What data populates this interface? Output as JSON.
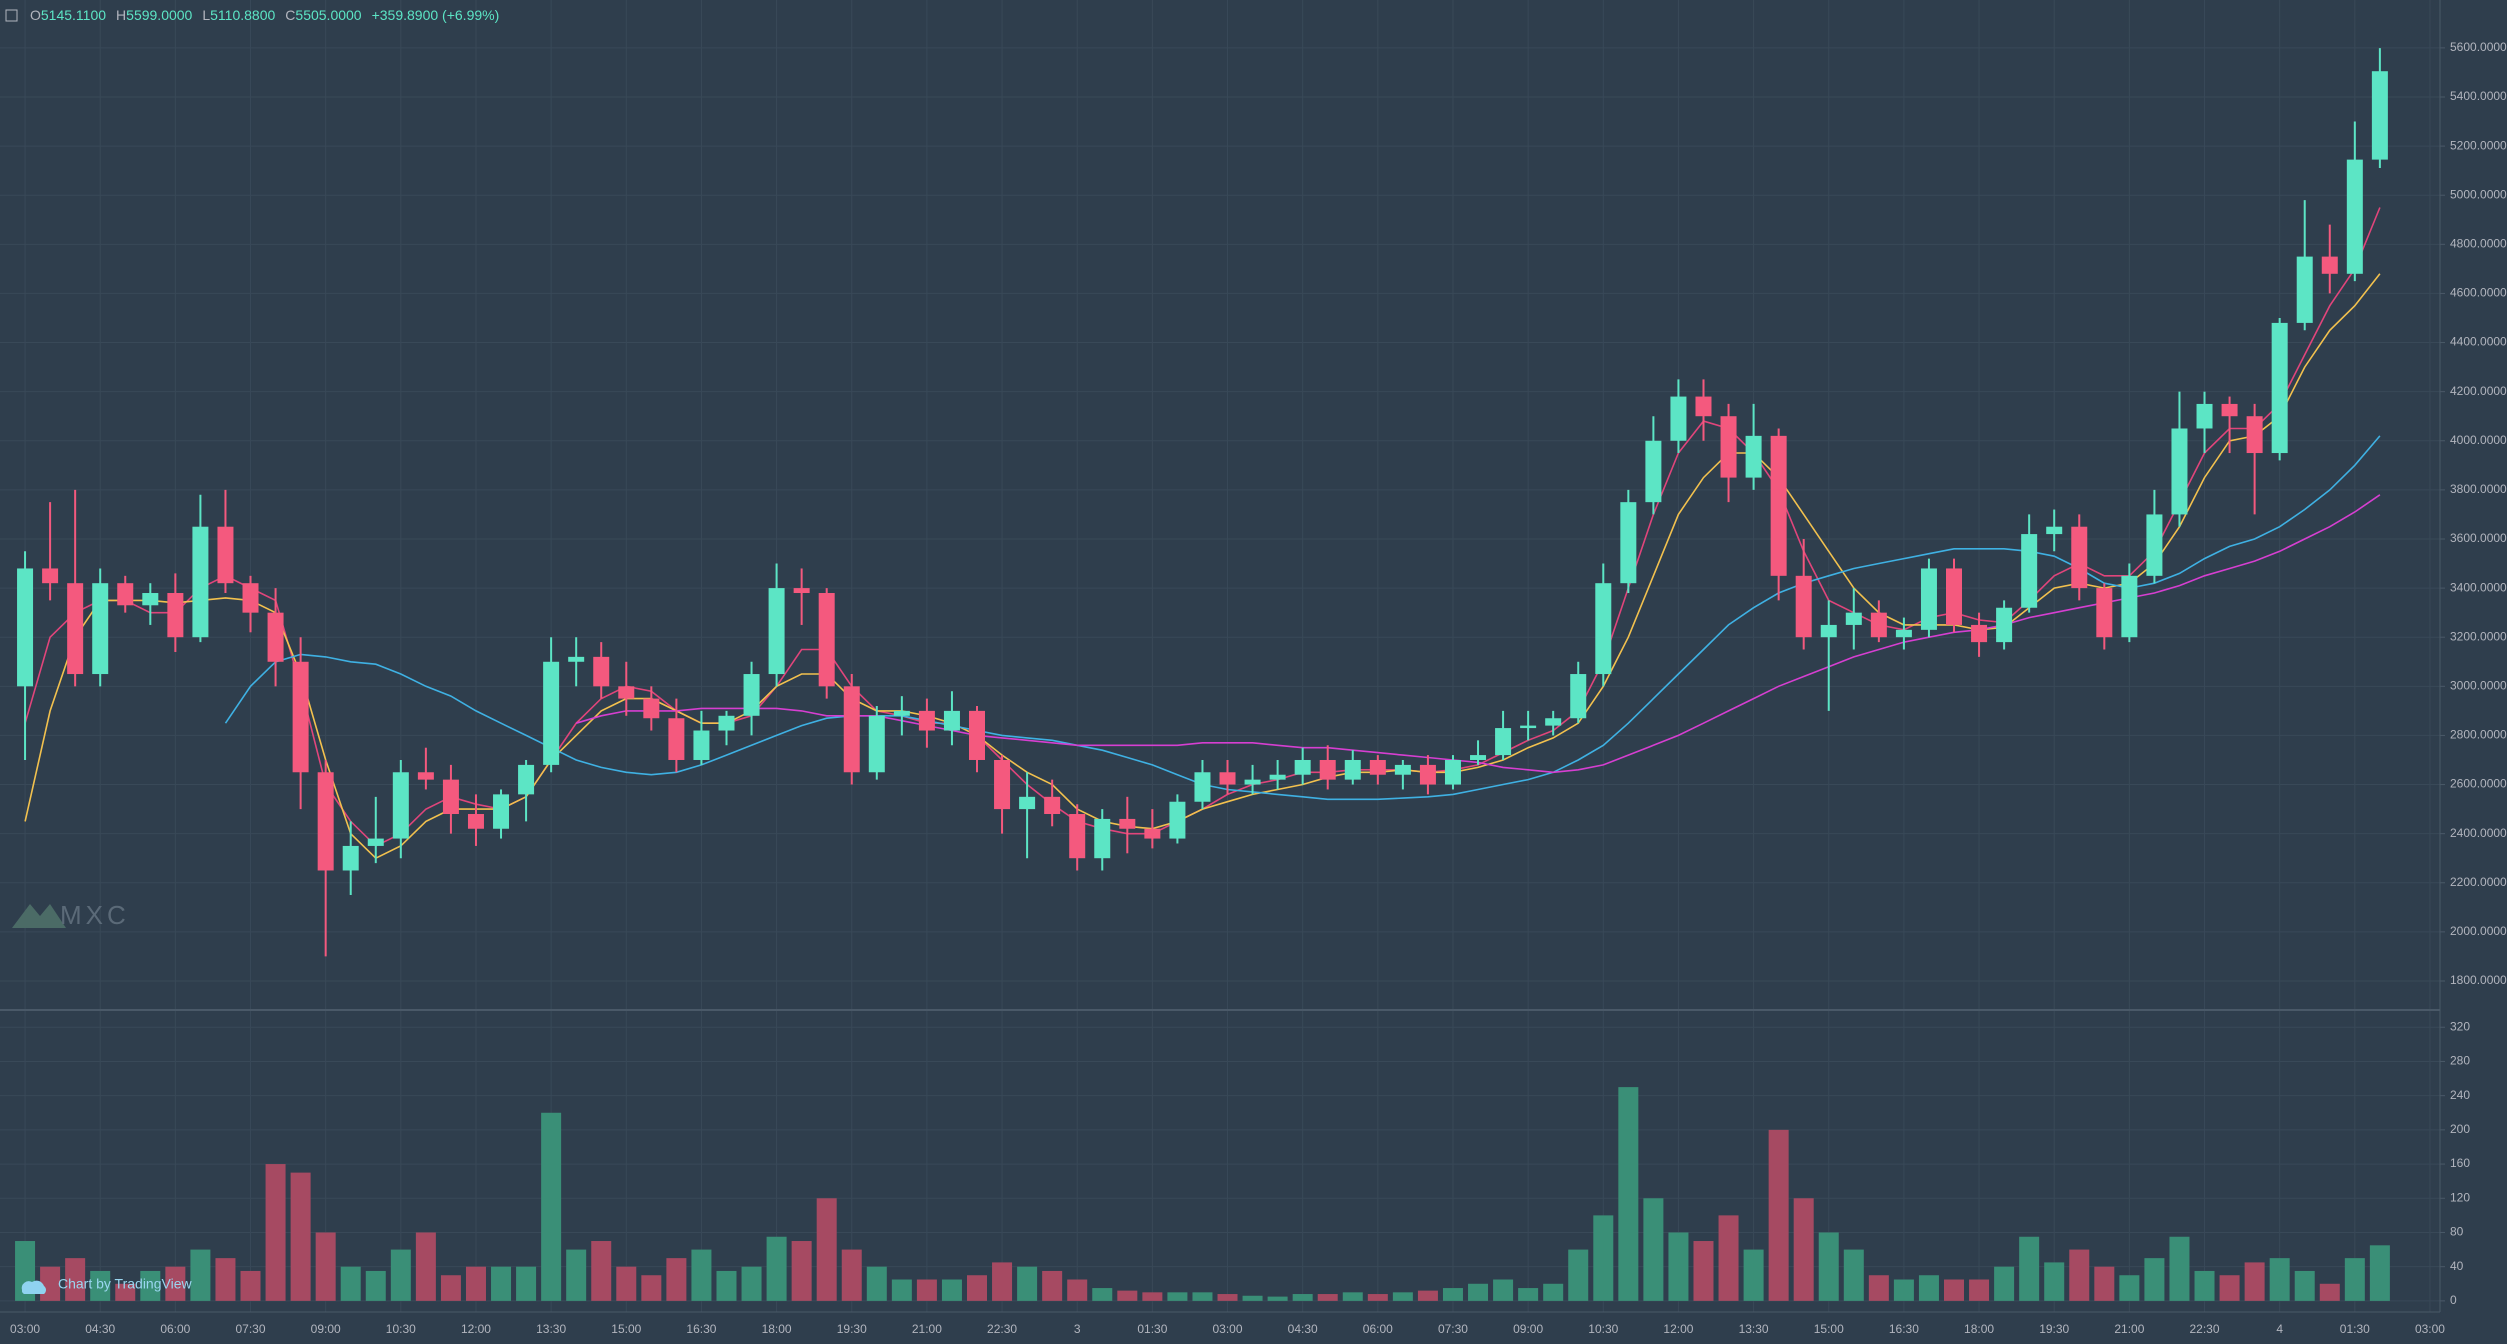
{
  "watermark": "MXC",
  "attribution": "Chart by TradingView",
  "chart_data": [
    {
      "type": "candlestick",
      "legend": [
        {
          "label": "O",
          "value": "5145.1100"
        },
        {
          "label": "H",
          "value": "5599.0000"
        },
        {
          "label": "L",
          "value": "5110.8800"
        },
        {
          "label": "C",
          "value": "5505.0000"
        }
      ],
      "change": "+359.8900 (+6.99%)",
      "up_color": "#5ce5c5",
      "down_color": "#f4597e",
      "grid": true,
      "xlim": [
        -1,
        96.4
      ],
      "xticks": [
        {
          "value": 0,
          "label": "03:00"
        },
        {
          "value": 3,
          "label": "04:30"
        },
        {
          "value": 6,
          "label": "06:00"
        },
        {
          "value": 9,
          "label": "07:30"
        },
        {
          "value": 12,
          "label": "09:00"
        },
        {
          "value": 15,
          "label": "10:30"
        },
        {
          "value": 18,
          "label": "12:00"
        },
        {
          "value": 21,
          "label": "13:30"
        },
        {
          "value": 24,
          "label": "15:00"
        },
        {
          "value": 27,
          "label": "16:30"
        },
        {
          "value": 30,
          "label": "18:00"
        },
        {
          "value": 33,
          "label": "19:30"
        },
        {
          "value": 36,
          "label": "21:00"
        },
        {
          "value": 39,
          "label": "22:30"
        },
        {
          "value": 42,
          "label": "3"
        },
        {
          "value": 45,
          "label": "01:30"
        },
        {
          "value": 48,
          "label": "03:00"
        },
        {
          "value": 51,
          "label": "04:30"
        },
        {
          "value": 54,
          "label": "06:00"
        },
        {
          "value": 57,
          "label": "07:30"
        },
        {
          "value": 60,
          "label": "09:00"
        },
        {
          "value": 63,
          "label": "10:30"
        },
        {
          "value": 66,
          "label": "12:00"
        },
        {
          "value": 69,
          "label": "13:30"
        },
        {
          "value": 72,
          "label": "15:00"
        },
        {
          "value": 75,
          "label": "16:30"
        },
        {
          "value": 78,
          "label": "18:00"
        },
        {
          "value": 81,
          "label": "19:30"
        },
        {
          "value": 84,
          "label": "21:00"
        },
        {
          "value": 87,
          "label": "22:30"
        },
        {
          "value": 90,
          "label": "4"
        },
        {
          "value": 93,
          "label": "01:30"
        },
        {
          "value": 96,
          "label": "03:00"
        }
      ],
      "ylim": [
        1690,
        5795
      ],
      "yticks": [
        {
          "value": 1800,
          "label": "1800.0000"
        },
        {
          "value": 2000,
          "label": "2000.0000"
        },
        {
          "value": 2200,
          "label": "2200.0000"
        },
        {
          "value": 2400,
          "label": "2400.0000"
        },
        {
          "value": 2600,
          "label": "2600.0000"
        },
        {
          "value": 2800,
          "label": "2800.0000"
        },
        {
          "value": 3000,
          "label": "3000.0000"
        },
        {
          "value": 3200,
          "label": "3200.0000"
        },
        {
          "value": 3400,
          "label": "3400.0000"
        },
        {
          "value": 3600,
          "label": "3600.0000"
        },
        {
          "value": 3800,
          "label": "3800.0000"
        },
        {
          "value": 4000,
          "label": "4000.0000"
        },
        {
          "value": 4200,
          "label": "4200.0000"
        },
        {
          "value": 4400,
          "label": "4400.0000"
        },
        {
          "value": 4600,
          "label": "4600.0000"
        },
        {
          "value": 4800,
          "label": "4800.0000"
        },
        {
          "value": 5000,
          "label": "5000.0000"
        },
        {
          "value": 5200,
          "label": "5200.0000"
        },
        {
          "value": 5400,
          "label": "5400.0000"
        },
        {
          "value": 5600,
          "label": "5600.0000"
        }
      ],
      "open": [
        3000,
        3480,
        3420,
        3050,
        3420,
        3330,
        3380,
        3200,
        3650,
        3420,
        3300,
        3100,
        2650,
        2250,
        2350,
        2380,
        2650,
        2620,
        2480,
        2420,
        2560,
        2680,
        3100,
        3120,
        3000,
        2950,
        2870,
        2700,
        2820,
        2880,
        3050,
        3400,
        3380,
        3000,
        2650,
        2880,
        2900,
        2820,
        2900,
        2700,
        2500,
        2550,
        2480,
        2300,
        2460,
        2420,
        2380,
        2530,
        2650,
        2600,
        2620,
        2640,
        2700,
        2620,
        2700,
        2640,
        2680,
        2600,
        2700,
        2720,
        2830,
        2840,
        2870,
        3050,
        3420,
        3750,
        4000,
        4180,
        4100,
        3850,
        4020,
        3450,
        3200,
        3250,
        3300,
        3200,
        3230,
        3480,
        3250,
        3180,
        3320,
        3620,
        3650,
        3400,
        3200,
        3450,
        3700,
        4050,
        4150,
        4100,
        3950,
        4480,
        4750,
        4680,
        5145
      ],
      "high": [
        3550,
        3750,
        3800,
        3480,
        3450,
        3420,
        3460,
        3780,
        3800,
        3450,
        3400,
        3200,
        2700,
        2450,
        2550,
        2700,
        2750,
        2680,
        2560,
        2580,
        2700,
        3200,
        3200,
        3180,
        3100,
        3000,
        2950,
        2900,
        2900,
        3100,
        3500,
        3480,
        3400,
        3050,
        2920,
        2960,
        2950,
        2980,
        2920,
        2720,
        2650,
        2620,
        2520,
        2500,
        2550,
        2500,
        2560,
        2700,
        2700,
        2680,
        2700,
        2750,
        2760,
        2740,
        2720,
        2700,
        2720,
        2720,
        2780,
        2900,
        2900,
        2900,
        3100,
        3500,
        3800,
        4100,
        4250,
        4250,
        4150,
        4150,
        4050,
        3600,
        3350,
        3400,
        3350,
        3280,
        3520,
        3520,
        3300,
        3350,
        3700,
        3720,
        3700,
        3420,
        3500,
        3800,
        4200,
        4200,
        4180,
        4150,
        4500,
        4980,
        4880,
        5300,
        5599
      ],
      "low": [
        2700,
        3350,
        3000,
        3000,
        3300,
        3250,
        3140,
        3180,
        3380,
        3220,
        3000,
        2500,
        1900,
        2150,
        2280,
        2300,
        2580,
        2400,
        2350,
        2380,
        2450,
        2650,
        3000,
        2950,
        2880,
        2820,
        2650,
        2680,
        2760,
        2800,
        3000,
        3250,
        2950,
        2600,
        2620,
        2800,
        2750,
        2760,
        2650,
        2400,
        2300,
        2430,
        2250,
        2250,
        2320,
        2340,
        2360,
        2500,
        2560,
        2560,
        2580,
        2600,
        2580,
        2600,
        2600,
        2580,
        2560,
        2580,
        2680,
        2700,
        2780,
        2800,
        2850,
        3000,
        3380,
        3700,
        3950,
        4000,
        3750,
        3800,
        3350,
        3150,
        2900,
        3150,
        3180,
        3150,
        3200,
        3220,
        3120,
        3150,
        3300,
        3550,
        3350,
        3150,
        3180,
        3420,
        3650,
        3950,
        3950,
        3700,
        3920,
        4450,
        4600,
        4650,
        5110.88
      ],
      "close": [
        3480,
        3420,
        3050,
        3420,
        3330,
        3380,
        3200,
        3650,
        3420,
        3300,
        3100,
        2650,
        2250,
        2350,
        2380,
        2650,
        2620,
        2480,
        2420,
        2560,
        2680,
        3100,
        3120,
        3000,
        2950,
        2870,
        2700,
        2820,
        2880,
        3050,
        3400,
        3380,
        3000,
        2650,
        2880,
        2900,
        2820,
        2900,
        2700,
        2500,
        2550,
        2480,
        2300,
        2460,
        2420,
        2380,
        2530,
        2650,
        2600,
        2620,
        2640,
        2700,
        2620,
        2700,
        2640,
        2680,
        2600,
        2700,
        2720,
        2830,
        2840,
        2870,
        3050,
        3420,
        3750,
        4000,
        4180,
        4100,
        3850,
        4020,
        3450,
        3200,
        3250,
        3300,
        3200,
        3230,
        3480,
        3250,
        3180,
        3320,
        3620,
        3650,
        3400,
        3200,
        3450,
        3700,
        4050,
        4150,
        4100,
        3950,
        4480,
        4750,
        4680,
        5145,
        5505
      ],
      "lines": [
        {
          "color": "#e0457b",
          "values": [
            2850,
            3200,
            3300,
            3350,
            3350,
            3300,
            3300,
            3400,
            3450,
            3400,
            3350,
            3000,
            2600,
            2450,
            2350,
            2400,
            2500,
            2550,
            2520,
            2500,
            2550,
            2700,
            2850,
            2950,
            3000,
            2980,
            2900,
            2850,
            2850,
            2880,
            3000,
            3150,
            3150,
            3000,
            2900,
            2880,
            2850,
            2850,
            2800,
            2700,
            2600,
            2520,
            2450,
            2420,
            2400,
            2400,
            2450,
            2500,
            2560,
            2600,
            2620,
            2650,
            2650,
            2660,
            2660,
            2660,
            2650,
            2660,
            2680,
            2730,
            2780,
            2820,
            2900,
            3100,
            3400,
            3700,
            3950,
            4080,
            4050,
            3950,
            3800,
            3550,
            3350,
            3300,
            3250,
            3230,
            3280,
            3300,
            3270,
            3260,
            3350,
            3450,
            3500,
            3450,
            3450,
            3550,
            3750,
            3950,
            4050,
            4050,
            4150,
            4350,
            4550,
            4700,
            4950
          ]
        },
        {
          "color": "#f2c14e",
          "values": [
            2450,
            2900,
            3200,
            3350,
            3350,
            3350,
            3340,
            3350,
            3360,
            3350,
            3300,
            3050,
            2700,
            2400,
            2300,
            2350,
            2450,
            2500,
            2500,
            2500,
            2550,
            2700,
            2800,
            2900,
            2950,
            2950,
            2900,
            2850,
            2850,
            2900,
            3000,
            3050,
            3050,
            2950,
            2900,
            2900,
            2880,
            2850,
            2800,
            2720,
            2650,
            2600,
            2500,
            2450,
            2430,
            2420,
            2450,
            2500,
            2530,
            2560,
            2580,
            2600,
            2630,
            2650,
            2650,
            2660,
            2650,
            2650,
            2670,
            2700,
            2750,
            2790,
            2850,
            3000,
            3200,
            3450,
            3700,
            3850,
            3950,
            3950,
            3850,
            3700,
            3550,
            3400,
            3300,
            3250,
            3250,
            3250,
            3230,
            3240,
            3320,
            3400,
            3420,
            3400,
            3420,
            3500,
            3650,
            3850,
            4000,
            4020,
            4100,
            4300,
            4450,
            4550,
            4680
          ]
        },
        {
          "color": "#3fb1e3",
          "values": [
            null,
            null,
            null,
            null,
            null,
            null,
            null,
            null,
            2850,
            3000,
            3100,
            3130,
            3120,
            3100,
            3090,
            3050,
            3000,
            2960,
            2900,
            2850,
            2800,
            2750,
            2700,
            2670,
            2650,
            2640,
            2650,
            2680,
            2720,
            2760,
            2800,
            2840,
            2870,
            2880,
            2880,
            2880,
            2860,
            2840,
            2820,
            2800,
            2790,
            2780,
            2760,
            2740,
            2710,
            2680,
            2640,
            2600,
            2580,
            2570,
            2560,
            2550,
            2540,
            2540,
            2540,
            2545,
            2550,
            2560,
            2580,
            2600,
            2620,
            2650,
            2700,
            2760,
            2850,
            2950,
            3050,
            3150,
            3250,
            3320,
            3380,
            3420,
            3450,
            3480,
            3500,
            3520,
            3540,
            3560,
            3560,
            3560,
            3550,
            3530,
            3480,
            3420,
            3400,
            3420,
            3460,
            3520,
            3570,
            3600,
            3650,
            3720,
            3800,
            3900,
            4020
          ]
        },
        {
          "color": "#d63fd1",
          "values": [
            null,
            null,
            null,
            null,
            null,
            null,
            null,
            null,
            null,
            null,
            null,
            null,
            null,
            null,
            null,
            null,
            null,
            null,
            null,
            null,
            null,
            null,
            2850,
            2880,
            2900,
            2900,
            2900,
            2910,
            2910,
            2910,
            2910,
            2900,
            2880,
            2880,
            2880,
            2860,
            2840,
            2820,
            2800,
            2790,
            2780,
            2770,
            2760,
            2760,
            2760,
            2760,
            2760,
            2770,
            2770,
            2770,
            2760,
            2750,
            2750,
            2740,
            2730,
            2720,
            2710,
            2700,
            2690,
            2670,
            2660,
            2650,
            2660,
            2680,
            2720,
            2760,
            2800,
            2850,
            2900,
            2950,
            3000,
            3040,
            3080,
            3120,
            3150,
            3180,
            3200,
            3220,
            3230,
            3250,
            3280,
            3300,
            3320,
            3340,
            3360,
            3380,
            3410,
            3450,
            3480,
            3510,
            3550,
            3600,
            3650,
            3710,
            3780
          ]
        }
      ]
    },
    {
      "type": "bar",
      "up_color": "#3a8f77",
      "down_color": "#a64a62",
      "ylim": [
        -13,
        339
      ],
      "yticks": [
        0,
        40,
        80,
        120,
        160,
        200,
        240,
        280,
        320
      ],
      "values": [
        70,
        40,
        50,
        35,
        20,
        35,
        40,
        60,
        50,
        35,
        160,
        150,
        80,
        40,
        35,
        60,
        80,
        30,
        40,
        40,
        40,
        220,
        60,
        70,
        40,
        30,
        50,
        60,
        35,
        40,
        75,
        70,
        120,
        60,
        40,
        25,
        25,
        25,
        30,
        45,
        40,
        35,
        25,
        15,
        12,
        10,
        10,
        10,
        8,
        6,
        5,
        8,
        8,
        10,
        8,
        10,
        12,
        15,
        20,
        25,
        15,
        20,
        60,
        100,
        250,
        120,
        80,
        70,
        100,
        60,
        200,
        120,
        80,
        60,
        30,
        25,
        30,
        25,
        25,
        40,
        75,
        45,
        60,
        40,
        30,
        50,
        75,
        35,
        30,
        45,
        50,
        35,
        20,
        50,
        65
      ]
    }
  ]
}
